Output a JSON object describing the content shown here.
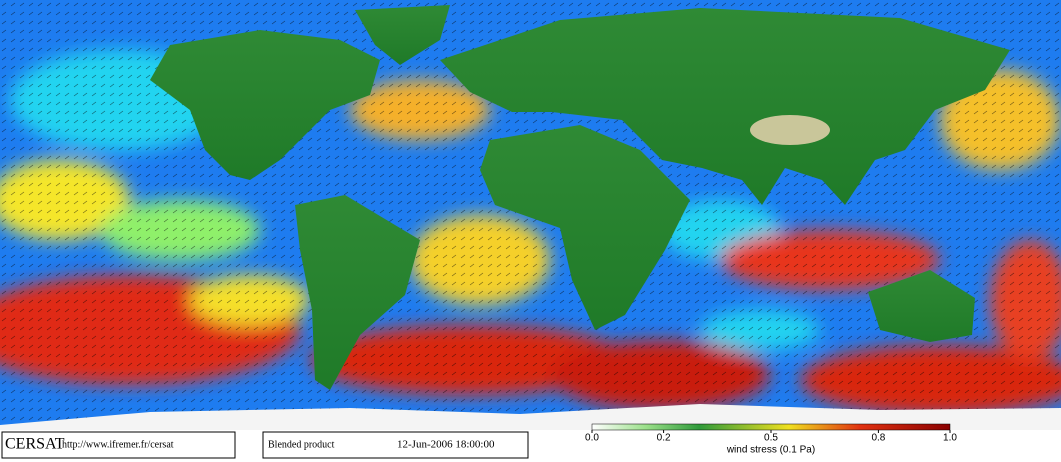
{
  "footer": {
    "logo": "CERSAT",
    "url": "http://www.ifremer.fr/cersat",
    "product": "Blended product",
    "timestamp": "12-Jun-2006 18:00:00"
  },
  "colorbar": {
    "label": "wind stress (0.1 Pa)",
    "range": [
      0,
      1
    ],
    "ticks": [
      {
        "value": 0,
        "label": "0.0"
      },
      0.2,
      0.5,
      0.8,
      {
        "value": 1,
        "label": "1.0"
      }
    ]
  }
}
